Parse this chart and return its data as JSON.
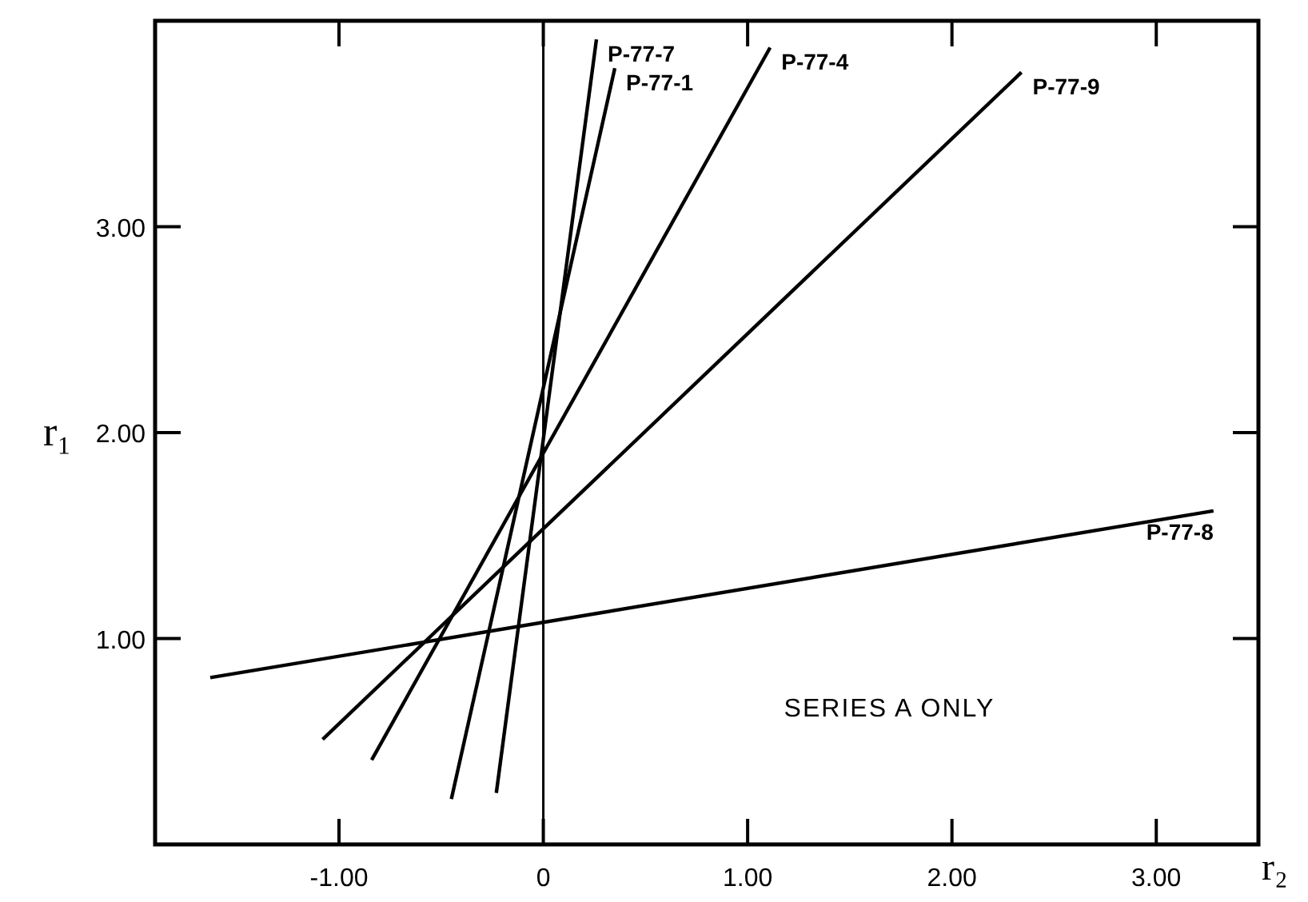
{
  "chart_data": {
    "type": "line",
    "xlabel": "r₂",
    "ylabel": "r₁",
    "xlim": [
      -1.9,
      3.5
    ],
    "ylim": [
      0,
      4
    ],
    "xticks": [
      {
        "value": -1,
        "label": "-1.00"
      },
      0,
      {
        "value": 1,
        "label": "1.00"
      },
      {
        "value": 2,
        "label": "2.00"
      },
      {
        "value": 3,
        "label": "3.00"
      }
    ],
    "yticks": [
      {
        "value": 1,
        "label": "1.00"
      },
      {
        "value": 2,
        "label": "2.00"
      },
      {
        "value": 3,
        "label": "3.00"
      }
    ],
    "grid": false,
    "marker": "none",
    "line_style": "solid",
    "ref_lines": [
      {
        "axis": "x",
        "value": 0,
        "label": null
      }
    ],
    "annotations": [
      "SERIES A ONLY"
    ],
    "series": [
      {
        "name": "P-77-7",
        "color": "#000000",
        "x": [
          -0.23,
          0.26
        ],
        "values": [
          0.25,
          3.91
        ]
      },
      {
        "name": "P-77-1",
        "color": "#000000",
        "x": [
          -0.45,
          0.35
        ],
        "values": [
          0.22,
          3.77
        ]
      },
      {
        "name": "P-77-4",
        "color": "#000000",
        "x": [
          -0.84,
          1.11
        ],
        "values": [
          0.41,
          3.87
        ]
      },
      {
        "name": "P-77-9",
        "color": "#000000",
        "x": [
          -1.08,
          2.34
        ],
        "values": [
          0.51,
          3.75
        ]
      },
      {
        "name": "P-77-8",
        "color": "#000000",
        "x": [
          -1.63,
          3.28
        ],
        "values": [
          0.81,
          1.62
        ]
      }
    ]
  }
}
